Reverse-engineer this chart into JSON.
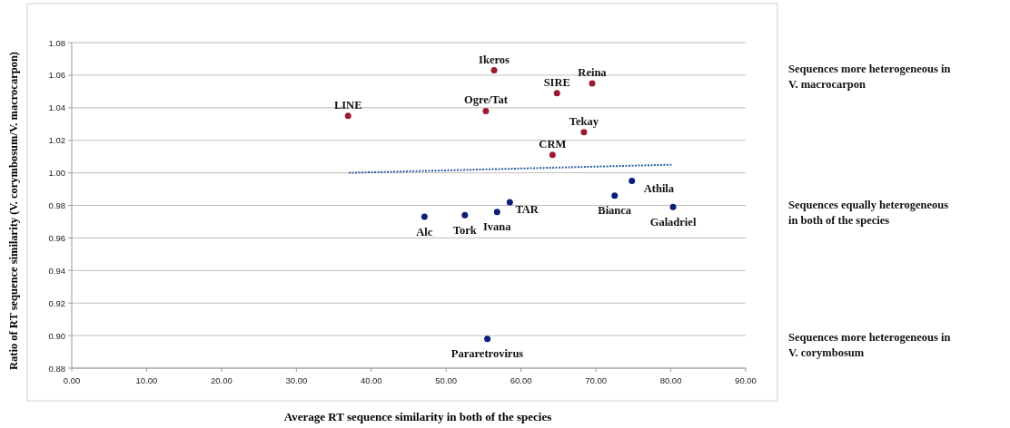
{
  "chart_data": {
    "type": "scatter",
    "xlabel": "Average RT sequence similarity in both of the species",
    "ylabel": "Ratio of  RT sequence similarity (V. corymbosum/V. macrocarpon)",
    "xlim": [
      0,
      90
    ],
    "ylim": [
      0.88,
      1.08
    ],
    "xticks": [
      {
        "value": 0,
        "label": "0.00"
      },
      {
        "value": 10,
        "label": "10.00"
      },
      {
        "value": 20,
        "label": "20.00"
      },
      {
        "value": 30,
        "label": "30.00"
      },
      {
        "value": 40,
        "label": "40.00"
      },
      {
        "value": 50,
        "label": "50.00"
      },
      {
        "value": 60,
        "label": "60.00"
      },
      {
        "value": 70,
        "label": "70.00"
      },
      {
        "value": 80,
        "label": "80.00"
      },
      {
        "value": 90,
        "label": "90.00"
      }
    ],
    "yticks": [
      {
        "value": 0.88,
        "label": "0.88"
      },
      {
        "value": 0.9,
        "label": "0.90"
      },
      {
        "value": 0.92,
        "label": "0.92"
      },
      {
        "value": 0.94,
        "label": "0.94"
      },
      {
        "value": 0.96,
        "label": "0.96"
      },
      {
        "value": 0.98,
        "label": "0.98"
      },
      {
        "value": 1,
        "label": "1.00"
      },
      {
        "value": 1.02,
        "label": "1.02"
      },
      {
        "value": 1.04,
        "label": "1.04"
      },
      {
        "value": 1.06,
        "label": "1.06"
      },
      {
        "value": 1.08,
        "label": "1.08"
      }
    ],
    "grid": "y",
    "marker": "circle",
    "series": [
      {
        "color": "#9b1b30",
        "x": [
          36.9,
          56.4,
          55.3,
          64.8,
          69.5,
          68.4,
          64.2
        ],
        "values": [
          1.035,
          1.063,
          1.038,
          1.049,
          1.055,
          1.025,
          1.011
        ]
      },
      {
        "color": "#0b1f7a",
        "x": [
          47.1,
          52.5,
          56.8,
          58.5,
          74.8,
          72.5,
          80.3,
          55.5
        ],
        "values": [
          0.973,
          0.974,
          0.976,
          0.982,
          0.995,
          0.986,
          0.979,
          0.898
        ]
      },
      {
        "type": "line",
        "line_style": "dotted",
        "marker": "none",
        "color": "#2e5fa8",
        "x": [
          37,
          80.1
        ],
        "values": [
          1.0,
          1.005
        ]
      }
    ],
    "annotations": [
      {
        "text": "LINE",
        "x": 36.9,
        "y": 1.035
      },
      {
        "text": "Ikeros",
        "x": 56.4,
        "y": 1.063
      },
      {
        "text": "Ogre/Tat",
        "x": 55.3,
        "y": 1.038
      },
      {
        "text": "SIRE",
        "x": 64.8,
        "y": 1.049
      },
      {
        "text": "Reina",
        "x": 69.5,
        "y": 1.055
      },
      {
        "text": "Tekay",
        "x": 68.4,
        "y": 1.025
      },
      {
        "text": "CRM",
        "x": 64.2,
        "y": 1.011
      },
      {
        "text": "Alc",
        "x": 47.1,
        "y": 0.973
      },
      {
        "text": "Tork",
        "x": 52.5,
        "y": 0.974
      },
      {
        "text": "Ivana",
        "x": 56.8,
        "y": 0.976
      },
      {
        "text": "TAR",
        "x": 58.5,
        "y": 0.982
      },
      {
        "text": "Athila",
        "x": 74.8,
        "y": 0.995
      },
      {
        "text": "Bianca",
        "x": 72.5,
        "y": 0.986
      },
      {
        "text": "Galadriel",
        "x": 80.3,
        "y": 0.979
      },
      {
        "text": "Pararetrovirus",
        "x": 55.5,
        "y": 0.898
      },
      "Sequences more heterogeneous in V. macrocarpon",
      "Sequences equally heterogeneous in both of the species",
      "Sequences more heterogeneous in V. corymbosum"
    ]
  }
}
